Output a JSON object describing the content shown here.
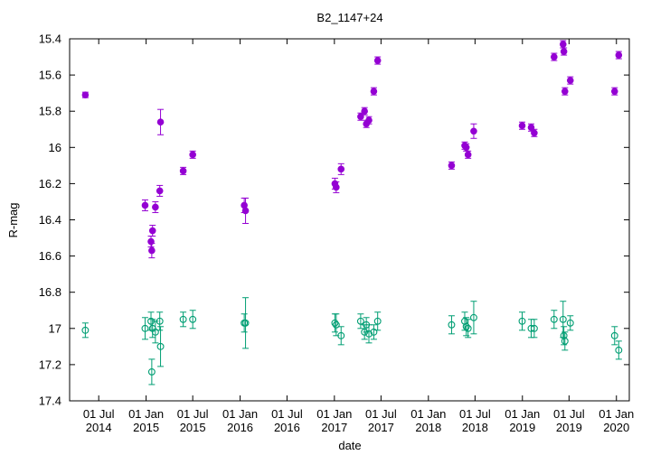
{
  "chart_data": {
    "type": "scatter",
    "title": "B2_1147+24",
    "xlabel": "date",
    "ylabel": "R-mag",
    "ylim": [
      17.4,
      15.4
    ],
    "y_reversed": true,
    "yticks": [
      "15.4",
      "15.6",
      "15.8",
      "16",
      "16.2",
      "16.4",
      "16.6",
      "16.8",
      "17",
      "17.2",
      "17.4"
    ],
    "xlim": [
      "2014-03-10",
      "2020-02-20"
    ],
    "xticks": [
      {
        "date": "2014-07-01",
        "line1": "01 Jul",
        "line2": "2014"
      },
      {
        "date": "2015-01-01",
        "line1": "01 Jan",
        "line2": "2015"
      },
      {
        "date": "2015-07-01",
        "line1": "01 Jul",
        "line2": "2015"
      },
      {
        "date": "2016-01-01",
        "line1": "01 Jan",
        "line2": "2016"
      },
      {
        "date": "2016-07-01",
        "line1": "01 Jul",
        "line2": "2016"
      },
      {
        "date": "2017-01-01",
        "line1": "01 Jan",
        "line2": "2017"
      },
      {
        "date": "2017-07-01",
        "line1": "01 Jul",
        "line2": "2017"
      },
      {
        "date": "2018-01-01",
        "line1": "01 Jan",
        "line2": "2018"
      },
      {
        "date": "2018-07-01",
        "line1": "01 Jul",
        "line2": "2018"
      },
      {
        "date": "2019-01-01",
        "line1": "01 Jan",
        "line2": "2019"
      },
      {
        "date": "2019-07-01",
        "line1": "01 Jul",
        "line2": "2019"
      },
      {
        "date": "2020-01-01",
        "line1": "01 Jan",
        "line2": "2020"
      }
    ],
    "grid": false,
    "series": [
      {
        "marker": "filled-circle",
        "color": "#9400d3",
        "points": [
          {
            "x": "2014-05-10",
            "y": 15.71,
            "err": 0.015
          },
          {
            "x": "2014-12-28",
            "y": 16.32,
            "err": 0.03
          },
          {
            "x": "2015-01-20",
            "y": 16.52,
            "err": 0.03
          },
          {
            "x": "2015-01-23",
            "y": 16.57,
            "err": 0.04
          },
          {
            "x": "2015-01-26",
            "y": 16.46,
            "err": 0.03
          },
          {
            "x": "2015-02-06",
            "y": 16.33,
            "err": 0.03
          },
          {
            "x": "2015-02-23",
            "y": 16.24,
            "err": 0.03
          },
          {
            "x": "2015-02-26",
            "y": 15.86,
            "err": 0.07
          },
          {
            "x": "2015-05-25",
            "y": 16.13,
            "err": 0.02
          },
          {
            "x": "2015-07-01",
            "y": 16.04,
            "err": 0.02
          },
          {
            "x": "2016-01-17",
            "y": 16.32,
            "err": 0.04
          },
          {
            "x": "2016-01-22",
            "y": 16.35,
            "err": 0.07
          },
          {
            "x": "2017-01-03",
            "y": 16.2,
            "err": 0.03
          },
          {
            "x": "2017-01-08",
            "y": 16.22,
            "err": 0.03
          },
          {
            "x": "2017-01-27",
            "y": 16.12,
            "err": 0.03
          },
          {
            "x": "2017-04-13",
            "y": 15.83,
            "err": 0.02
          },
          {
            "x": "2017-04-28",
            "y": 15.8,
            "err": 0.02
          },
          {
            "x": "2017-05-05",
            "y": 15.87,
            "err": 0.02
          },
          {
            "x": "2017-05-15",
            "y": 15.85,
            "err": 0.02
          },
          {
            "x": "2017-06-03",
            "y": 15.69,
            "err": 0.02
          },
          {
            "x": "2017-06-18",
            "y": 15.52,
            "err": 0.02
          },
          {
            "x": "2018-04-01",
            "y": 16.1,
            "err": 0.02
          },
          {
            "x": "2018-05-22",
            "y": 15.99,
            "err": 0.02
          },
          {
            "x": "2018-05-28",
            "y": 16.0,
            "err": 0.02
          },
          {
            "x": "2018-06-04",
            "y": 16.04,
            "err": 0.02
          },
          {
            "x": "2018-06-26",
            "y": 15.91,
            "err": 0.04
          },
          {
            "x": "2018-12-31",
            "y": 15.88,
            "err": 0.02
          },
          {
            "x": "2019-02-04",
            "y": 15.89,
            "err": 0.02
          },
          {
            "x": "2019-02-16",
            "y": 15.92,
            "err": 0.02
          },
          {
            "x": "2019-05-04",
            "y": 15.5,
            "err": 0.02
          },
          {
            "x": "2019-06-08",
            "y": 15.43,
            "err": 0.02
          },
          {
            "x": "2019-06-11",
            "y": 15.47,
            "err": 0.02
          },
          {
            "x": "2019-06-15",
            "y": 15.69,
            "err": 0.02
          },
          {
            "x": "2019-07-06",
            "y": 15.63,
            "err": 0.02
          },
          {
            "x": "2019-12-25",
            "y": 15.69,
            "err": 0.02
          },
          {
            "x": "2020-01-10",
            "y": 15.49,
            "err": 0.02
          }
        ]
      },
      {
        "marker": "open-circle",
        "color": "#009e73",
        "points": [
          {
            "x": "2014-05-10",
            "y": 17.01,
            "err": 0.04
          },
          {
            "x": "2014-12-28",
            "y": 17.0,
            "err": 0.06
          },
          {
            "x": "2015-01-20",
            "y": 16.96,
            "err": 0.05
          },
          {
            "x": "2015-01-23",
            "y": 17.24,
            "err": 0.07
          },
          {
            "x": "2015-01-26",
            "y": 17.0,
            "err": 0.05
          },
          {
            "x": "2015-02-06",
            "y": 17.02,
            "err": 0.06
          },
          {
            "x": "2015-02-23",
            "y": 16.96,
            "err": 0.05
          },
          {
            "x": "2015-02-26",
            "y": 17.1,
            "err": 0.11
          },
          {
            "x": "2015-05-25",
            "y": 16.95,
            "err": 0.04
          },
          {
            "x": "2015-07-01",
            "y": 16.95,
            "err": 0.05
          },
          {
            "x": "2016-01-17",
            "y": 16.97,
            "err": 0.05
          },
          {
            "x": "2016-01-22",
            "y": 16.97,
            "err": 0.14
          },
          {
            "x": "2017-01-03",
            "y": 16.97,
            "err": 0.05
          },
          {
            "x": "2017-01-08",
            "y": 16.98,
            "err": 0.06
          },
          {
            "x": "2017-01-27",
            "y": 17.04,
            "err": 0.05
          },
          {
            "x": "2017-04-13",
            "y": 16.96,
            "err": 0.04
          },
          {
            "x": "2017-04-28",
            "y": 17.02,
            "err": 0.04
          },
          {
            "x": "2017-05-05",
            "y": 16.98,
            "err": 0.04
          },
          {
            "x": "2017-05-15",
            "y": 17.03,
            "err": 0.05
          },
          {
            "x": "2017-06-03",
            "y": 17.02,
            "err": 0.04
          },
          {
            "x": "2017-06-18",
            "y": 16.96,
            "err": 0.05
          },
          {
            "x": "2018-04-01",
            "y": 16.98,
            "err": 0.05
          },
          {
            "x": "2018-05-22",
            "y": 16.96,
            "err": 0.05
          },
          {
            "x": "2018-05-28",
            "y": 16.99,
            "err": 0.05
          },
          {
            "x": "2018-06-04",
            "y": 17.0,
            "err": 0.05
          },
          {
            "x": "2018-06-26",
            "y": 16.94,
            "err": 0.09
          },
          {
            "x": "2018-12-31",
            "y": 16.96,
            "err": 0.05
          },
          {
            "x": "2019-02-04",
            "y": 17.0,
            "err": 0.05
          },
          {
            "x": "2019-02-16",
            "y": 17.0,
            "err": 0.05
          },
          {
            "x": "2019-05-04",
            "y": 16.95,
            "err": 0.05
          },
          {
            "x": "2019-06-08",
            "y": 16.95,
            "err": 0.1
          },
          {
            "x": "2019-06-11",
            "y": 17.04,
            "err": 0.05
          },
          {
            "x": "2019-06-15",
            "y": 17.07,
            "err": 0.05
          },
          {
            "x": "2019-07-06",
            "y": 16.97,
            "err": 0.04
          },
          {
            "x": "2019-12-25",
            "y": 17.04,
            "err": 0.05
          },
          {
            "x": "2020-01-10",
            "y": 17.12,
            "err": 0.05
          }
        ]
      }
    ]
  }
}
